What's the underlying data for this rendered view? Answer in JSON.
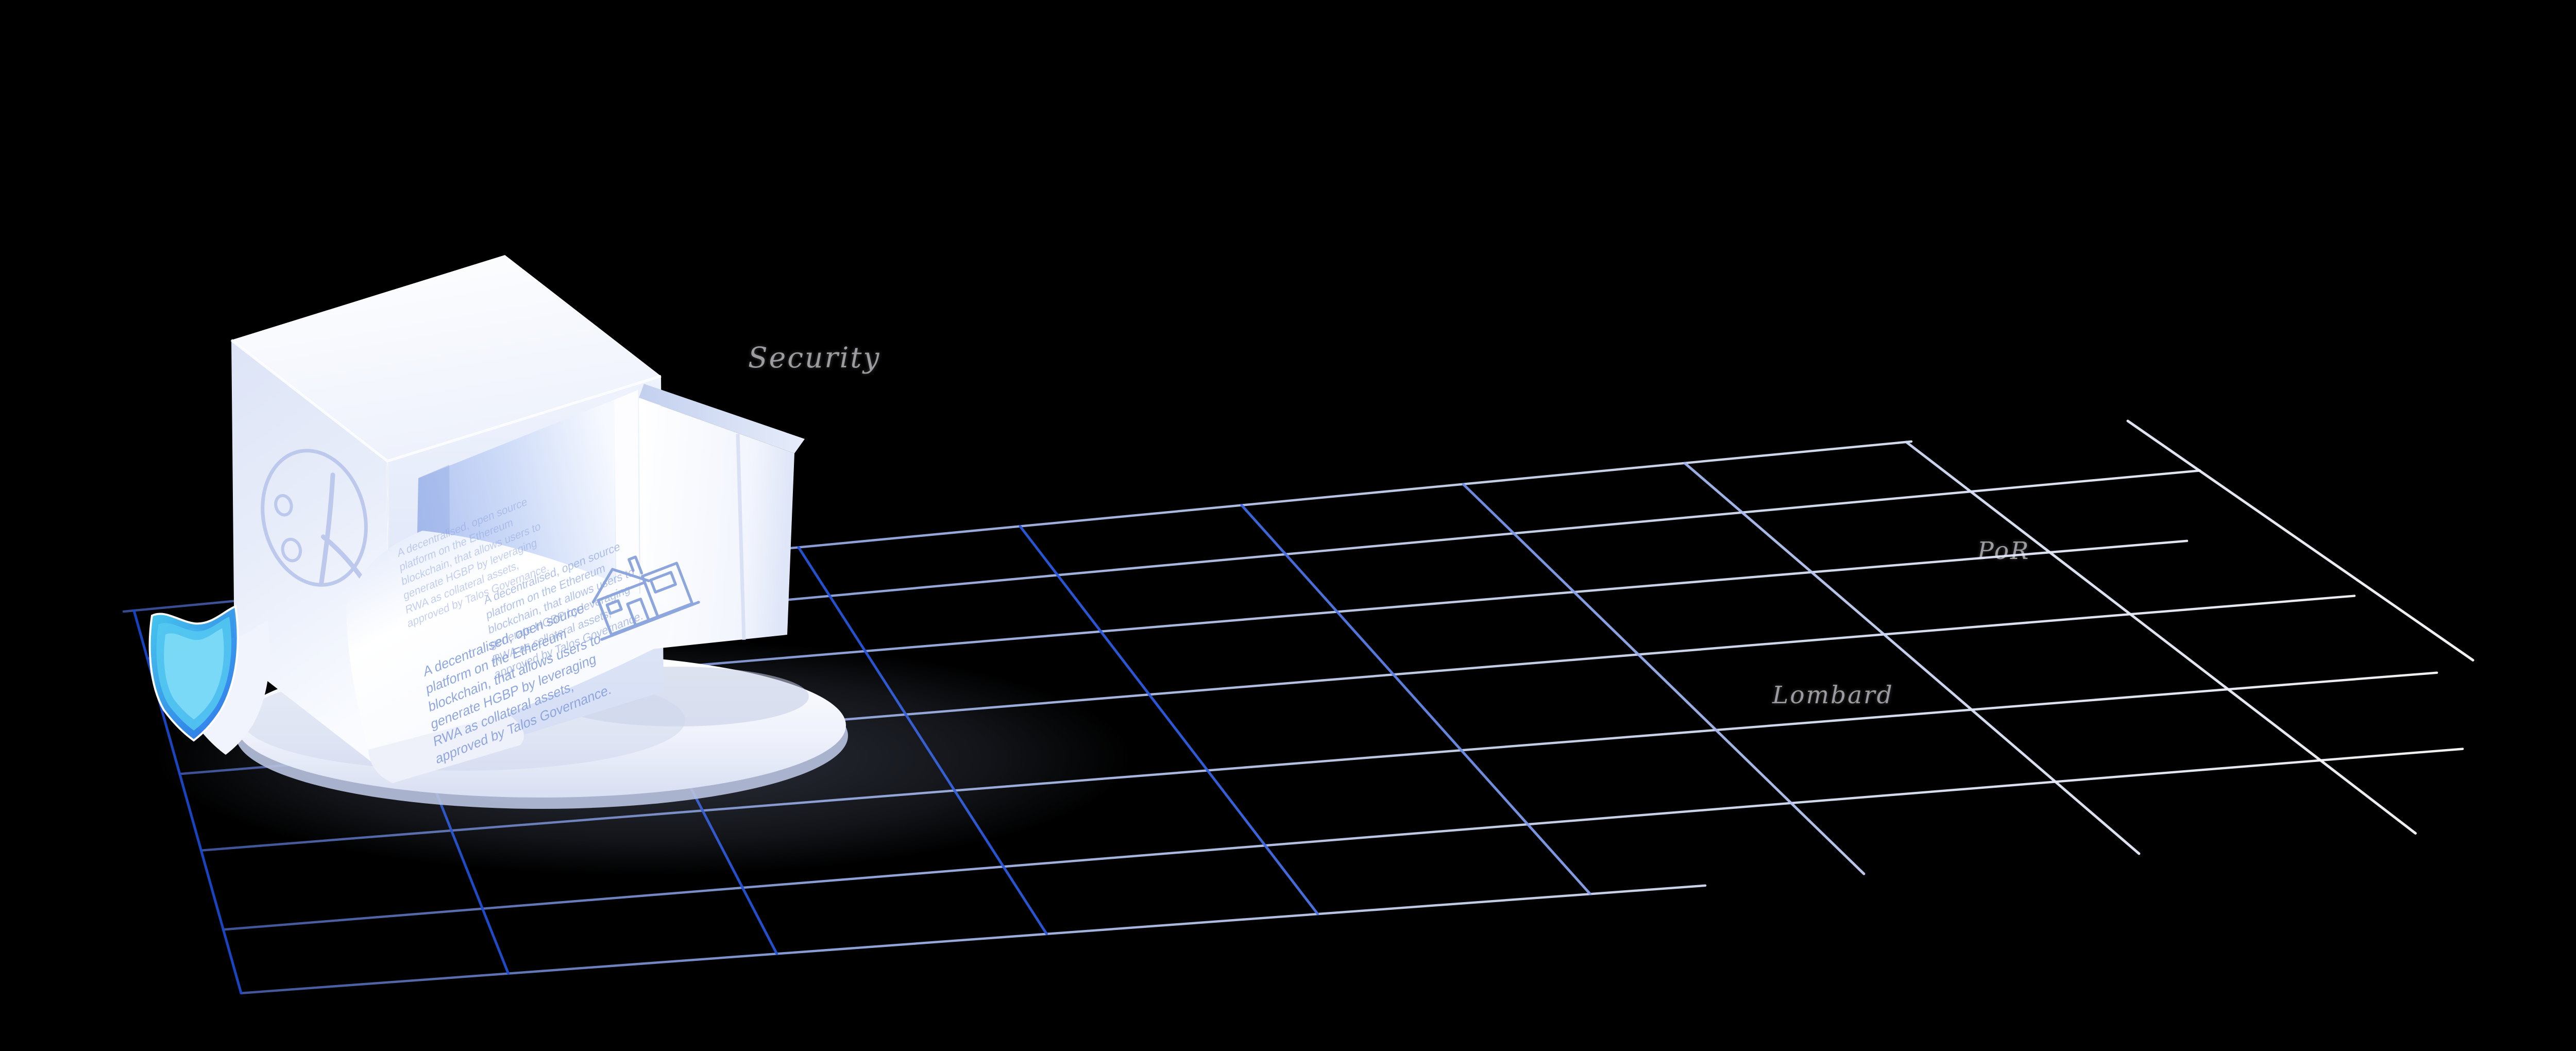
{
  "scene": {
    "description": "Dark hero illustration: isometric open vault ejecting a document, blue shield, perspective grid",
    "background": "#000000"
  },
  "floating_words": {
    "security": "Security",
    "por": "PoR",
    "lombard": "Lombard"
  },
  "safe": {
    "emblem_icon": "percent-lambda-emblem",
    "document": {
      "paragraph": "A decentralised, open source platform on the Ethereum blockchain, that allows users to generate HGBP by leveraging RWA as collateral assets, approved by Talos Governance.",
      "paragraph_repeat_count": 3,
      "icon": "house-icon"
    }
  },
  "shield": {
    "icon": "shield-icon"
  },
  "colors": {
    "background": "#000000",
    "word_text": "#9b9ba0",
    "grid_blue_deep": "#1847c8",
    "grid_blue": "#2e5ce0",
    "grid_blue_light": "#8aa4ec",
    "grid_pale": "#e2e9fb",
    "grid_white": "#ffffff",
    "grid_a_left": "#4a66c8",
    "grid_a_mid": "#94a9e2",
    "grid_a_pale": "#c9d4f1",
    "safe_face_light": "#f7f9ff",
    "safe_face_shade": "#dde4f6",
    "interior_blue": "#a9bdef",
    "paper_text_blue": "#8ba3dd",
    "shield_cyan": "#49ccf2",
    "shield_blue": "#2d74ea"
  }
}
